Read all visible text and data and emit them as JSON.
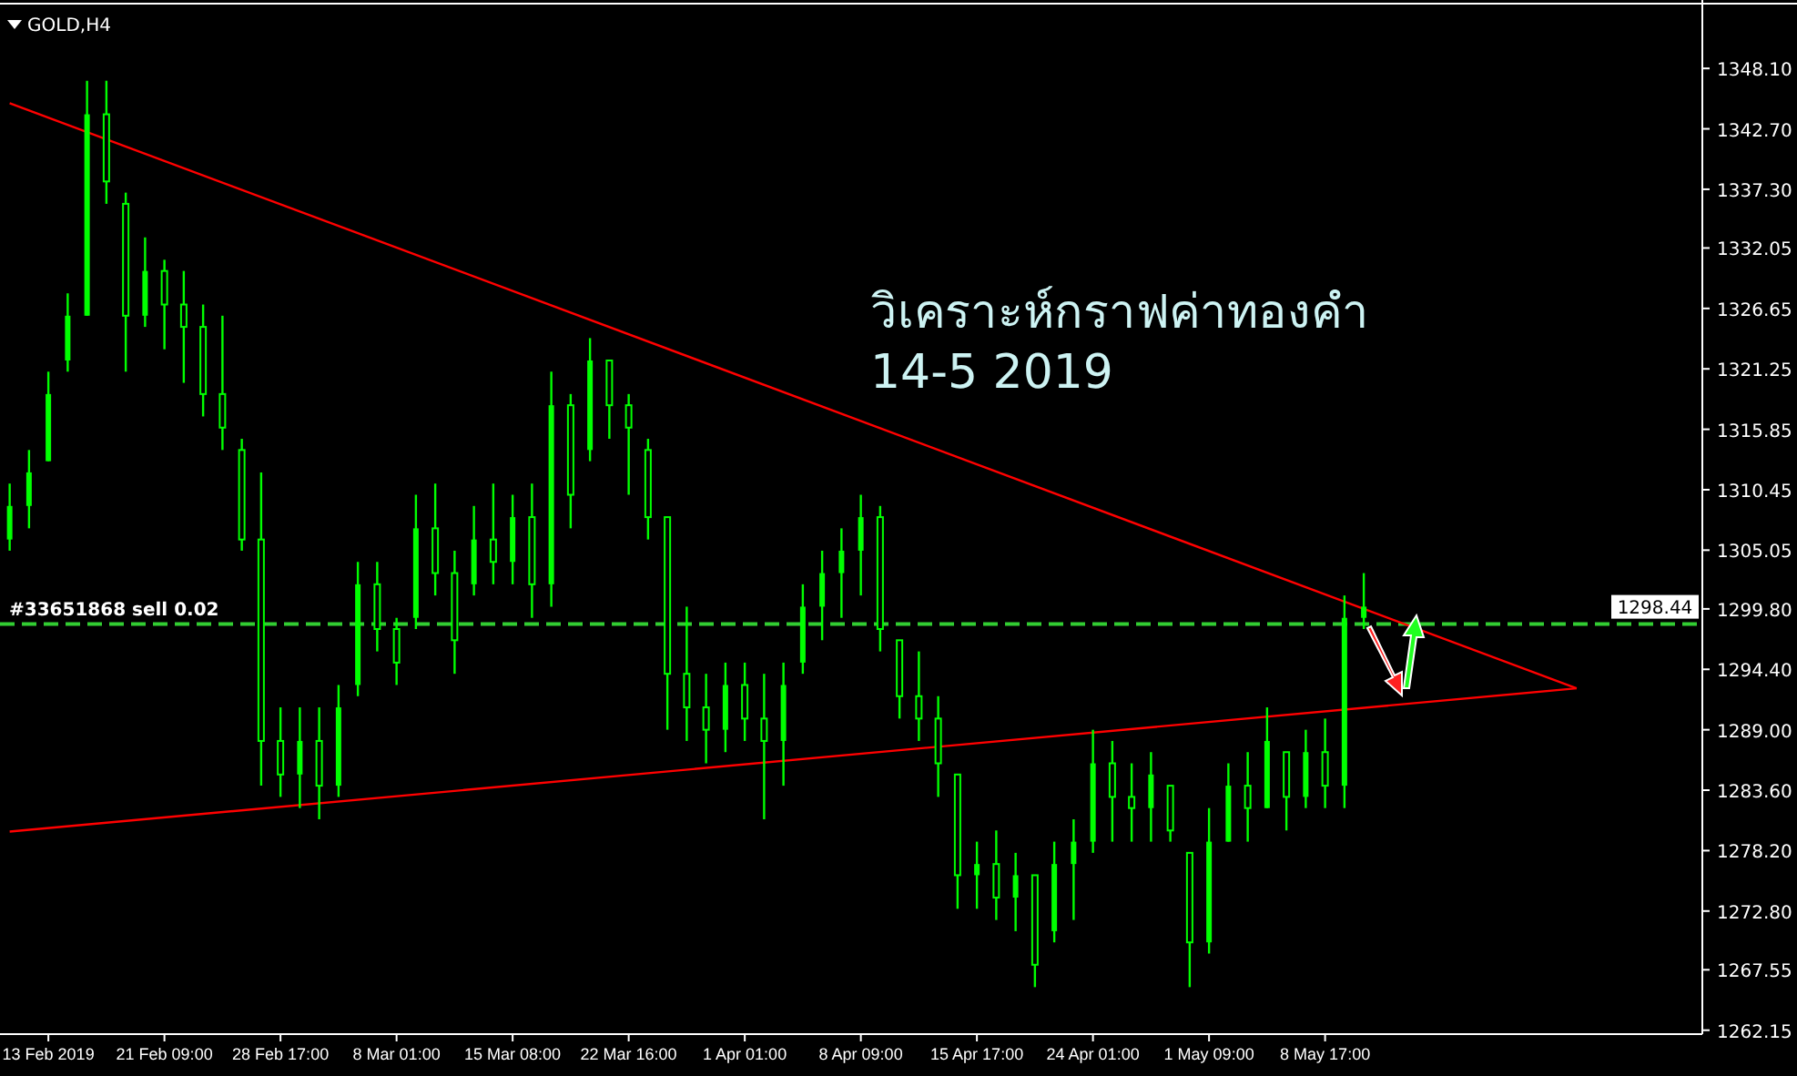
{
  "chart_data": {
    "type": "candlestick",
    "title": "GOLD,H4",
    "categories": [
      null,
      null,
      "13 Feb 2019",
      null,
      null,
      null,
      null,
      null,
      "21 Feb 09:00",
      null,
      null,
      null,
      null,
      null,
      "28 Feb 17:00",
      null,
      null,
      null,
      null,
      null,
      "8 Mar 01:00",
      null,
      null,
      null,
      null,
      null,
      "15 Mar 08:00",
      null,
      null,
      null,
      null,
      null,
      "22 Mar 16:00",
      null,
      null,
      null,
      null,
      null,
      "1 Apr 01:00",
      null,
      null,
      null,
      null,
      null,
      "8 Apr 09:00",
      null,
      null,
      null,
      null,
      null,
      "15 Apr 17:00",
      null,
      null,
      null,
      null,
      null,
      "24 Apr 01:00",
      null,
      null,
      null,
      null,
      null,
      "1 May 09:00",
      null,
      null,
      null,
      null,
      null,
      "8 May 17:00",
      null,
      null,
      null,
      null,
      null,
      null,
      null,
      null,
      null,
      null,
      null,
      null,
      null,
      null,
      null,
      null,
      null,
      null,
      null
    ],
    "series": [
      {
        "type": "candlestick",
        "color": "#00ff00",
        "ohlc": [
          [
            1306,
            1311,
            1305,
            1309
          ],
          [
            1309,
            1314,
            1307,
            1312
          ],
          [
            1313,
            1321,
            1313,
            1319
          ],
          [
            1322,
            1328,
            1321,
            1326
          ],
          [
            1326,
            1347,
            1326,
            1344
          ],
          [
            1344,
            1347,
            1336,
            1338
          ],
          [
            1336,
            1337,
            1321,
            1326
          ],
          [
            1326,
            1333,
            1325,
            1330
          ],
          [
            1330,
            1331,
            1323,
            1327
          ],
          [
            1327,
            1330,
            1320,
            1325
          ],
          [
            1325,
            1327,
            1317,
            1319
          ],
          [
            1319,
            1326,
            1314,
            1316
          ],
          [
            1314,
            1315,
            1305,
            1306
          ],
          [
            1306,
            1312,
            1284,
            1288
          ],
          [
            1288,
            1291,
            1283,
            1285
          ],
          [
            1285,
            1291,
            1282,
            1288
          ],
          [
            1288,
            1291,
            1281,
            1284
          ],
          [
            1284,
            1293,
            1283,
            1291
          ],
          [
            1293,
            1304,
            1292,
            1302
          ],
          [
            1302,
            1304,
            1296,
            1298
          ],
          [
            1298,
            1299,
            1293,
            1295
          ],
          [
            1299,
            1310,
            1298,
            1307
          ],
          [
            1307,
            1311,
            1301,
            1303
          ],
          [
            1303,
            1305,
            1294,
            1297
          ],
          [
            1302,
            1309,
            1301,
            1306
          ],
          [
            1306,
            1311,
            1302,
            1304
          ],
          [
            1304,
            1310,
            1302,
            1308
          ],
          [
            1308,
            1311,
            1299,
            1302
          ],
          [
            1302,
            1321,
            1300,
            1318
          ],
          [
            1318,
            1319,
            1307,
            1310
          ],
          [
            1314,
            1324,
            1313,
            1322
          ],
          [
            1322,
            1322,
            1315,
            1318
          ],
          [
            1318,
            1319,
            1310,
            1316
          ],
          [
            1314,
            1315,
            1306,
            1308
          ],
          [
            1308,
            1308,
            1289,
            1294
          ],
          [
            1294,
            1300,
            1288,
            1291
          ],
          [
            1291,
            1294,
            1286,
            1289
          ],
          [
            1289,
            1295,
            1287,
            1293
          ],
          [
            1293,
            1295,
            1288,
            1290
          ],
          [
            1290,
            1294,
            1281,
            1288
          ],
          [
            1288,
            1295,
            1284,
            1293
          ],
          [
            1295,
            1302,
            1294,
            1300
          ],
          [
            1300,
            1305,
            1297,
            1303
          ],
          [
            1303,
            1307,
            1299,
            1305
          ],
          [
            1305,
            1310,
            1301,
            1308
          ],
          [
            1308,
            1309,
            1296,
            1298
          ],
          [
            1297,
            1297,
            1290,
            1292
          ],
          [
            1292,
            1296,
            1288,
            1290
          ],
          [
            1290,
            1292,
            1283,
            1286
          ],
          [
            1285,
            1285,
            1273,
            1276
          ],
          [
            1276,
            1279,
            1273,
            1277
          ],
          [
            1277,
            1280,
            1272,
            1274
          ],
          [
            1274,
            1278,
            1271,
            1276
          ],
          [
            1276,
            1276,
            1266,
            1268
          ],
          [
            1271,
            1279,
            1270,
            1277
          ],
          [
            1277,
            1281,
            1272,
            1279
          ],
          [
            1279,
            1289,
            1278,
            1286
          ],
          [
            1286,
            1288,
            1279,
            1283
          ],
          [
            1283,
            1286,
            1279,
            1282
          ],
          [
            1282,
            1287,
            1279,
            1285
          ],
          [
            1284,
            1284,
            1279,
            1280
          ],
          [
            1278,
            1278,
            1266,
            1270
          ],
          [
            1270,
            1282,
            1269,
            1279
          ],
          [
            1279,
            1286,
            1279,
            1284
          ],
          [
            1284,
            1287,
            1279,
            1282
          ],
          [
            1282,
            1291,
            1282,
            1288
          ],
          [
            1287,
            1287,
            1280,
            1283
          ],
          [
            1283,
            1289,
            1282,
            1287
          ],
          [
            1287,
            1290,
            1282,
            1284
          ],
          [
            1284,
            1301,
            1282,
            1299
          ],
          [
            1299,
            1303,
            1298,
            1300
          ],
          null,
          null,
          null,
          null,
          null,
          null,
          null,
          null,
          null,
          null,
          null,
          null,
          null,
          null,
          null,
          null,
          null
        ]
      },
      {
        "type": "line",
        "color": "#ff0000",
        "values": [
          1345.0,
          null,
          null,
          null,
          null,
          null,
          null,
          null,
          null,
          null,
          null,
          null,
          null,
          null,
          null,
          null,
          null,
          null,
          null,
          null,
          null,
          null,
          null,
          null,
          null,
          null,
          null,
          null,
          null,
          null,
          null,
          null,
          null,
          null,
          null,
          null,
          null,
          null,
          null,
          null,
          null,
          null,
          null,
          null,
          null,
          null,
          null,
          null,
          null,
          null,
          null,
          null,
          null,
          null,
          null,
          null,
          null,
          null,
          null,
          null,
          null,
          null,
          null,
          null,
          null,
          null,
          null,
          null,
          null,
          null,
          null,
          null,
          null,
          null,
          null,
          null,
          null,
          null,
          null,
          null,
          null,
          1292.7,
          null,
          null,
          null,
          null,
          null,
          null
        ]
      },
      {
        "type": "line",
        "color": "#ff0000",
        "values": [
          1279.9,
          null,
          null,
          null,
          null,
          null,
          null,
          null,
          null,
          null,
          null,
          null,
          null,
          null,
          null,
          null,
          null,
          null,
          null,
          null,
          null,
          null,
          null,
          null,
          null,
          null,
          null,
          null,
          null,
          null,
          null,
          null,
          null,
          null,
          null,
          null,
          null,
          null,
          null,
          null,
          null,
          null,
          null,
          null,
          null,
          null,
          null,
          null,
          null,
          null,
          null,
          null,
          null,
          null,
          null,
          null,
          null,
          null,
          null,
          null,
          null,
          null,
          null,
          null,
          null,
          null,
          null,
          null,
          null,
          null,
          null,
          null,
          null,
          null,
          null,
          null,
          null,
          null,
          null,
          null,
          null,
          1292.7,
          null,
          null,
          null,
          null,
          null,
          null
        ]
      }
    ],
    "ylim": [
      1261.8,
      1353.4
    ],
    "yticks": [
      {
        "value": 1348.1,
        "label": "1348.10"
      },
      {
        "value": 1342.7,
        "label": "1342.70"
      },
      {
        "value": 1337.3,
        "label": "1337.30"
      },
      {
        "value": 1332.05,
        "label": "1332.05"
      },
      {
        "value": 1326.65,
        "label": "1326.65"
      },
      {
        "value": 1321.25,
        "label": "1321.25"
      },
      {
        "value": 1315.85,
        "label": "1315.85"
      },
      {
        "value": 1310.45,
        "label": "1310.45"
      },
      {
        "value": 1305.05,
        "label": "1305.05"
      },
      {
        "value": 1299.8,
        "label": "1299.80"
      },
      {
        "value": 1294.4,
        "label": "1294.40"
      },
      {
        "value": 1289.0,
        "label": "1289.00"
      },
      {
        "value": 1283.6,
        "label": "1283.60"
      },
      {
        "value": 1278.2,
        "label": "1278.20"
      },
      {
        "value": 1272.8,
        "label": "1272.80"
      },
      {
        "value": 1267.55,
        "label": "1267.55"
      },
      {
        "value": 1262.15,
        "label": "1262.15"
      }
    ],
    "ref_lines": [
      {
        "axis": "y",
        "value": 1298.44,
        "label": "#33651868 sell 0.02",
        "color": "#32cd32",
        "line_style": "dashed"
      }
    ],
    "annotations": [
      "วิเคราะห์กราฟค่าทองคำ",
      "14-5 2019",
      {
        "text": "1298.44",
        "y": 1298.44
      }
    ]
  }
}
